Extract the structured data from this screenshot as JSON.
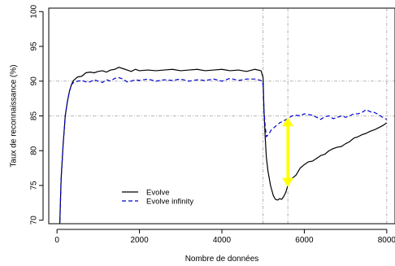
{
  "chart_data": {
    "type": "line",
    "title": "",
    "xlabel": "Nombre de données",
    "ylabel": "Taux de reconnaissance (%)",
    "xlim": [
      -200,
      8200
    ],
    "ylim": [
      69.5,
      100.5
    ],
    "x_ticks": [
      0,
      2000,
      4000,
      6000,
      8000
    ],
    "x_tick_labels": [
      "0",
      "2000",
      "4000",
      "6000",
      "8000"
    ],
    "y_ticks": [
      70,
      75,
      80,
      85,
      90,
      95,
      100
    ],
    "y_tick_labels": [
      "70",
      "75",
      "80",
      "85",
      "90",
      "95",
      "100"
    ],
    "reference_lines": {
      "horizontal": [
        85,
        90
      ],
      "vertical": [
        5000,
        5600,
        8000
      ],
      "color": "#a0a0a0",
      "style": "dot-dash"
    },
    "legend": {
      "position": "bottom-left"
    },
    "series": [
      {
        "name": "Evolve",
        "color": "#000000",
        "style": "solid",
        "points": [
          [
            60,
            68
          ],
          [
            100,
            76
          ],
          [
            150,
            81
          ],
          [
            200,
            85
          ],
          [
            250,
            87
          ],
          [
            300,
            88.5
          ],
          [
            350,
            89.5
          ],
          [
            400,
            90.1
          ],
          [
            500,
            90.6
          ],
          [
            600,
            90.7
          ],
          [
            700,
            91.2
          ],
          [
            800,
            91.3
          ],
          [
            900,
            91.2
          ],
          [
            1000,
            91.4
          ],
          [
            1100,
            91.5
          ],
          [
            1200,
            91.3
          ],
          [
            1300,
            91.6
          ],
          [
            1400,
            91.7
          ],
          [
            1500,
            92.0
          ],
          [
            1600,
            91.8
          ],
          [
            1700,
            91.6
          ],
          [
            1800,
            91.4
          ],
          [
            1900,
            91.7
          ],
          [
            2000,
            91.5
          ],
          [
            2200,
            91.6
          ],
          [
            2400,
            91.5
          ],
          [
            2600,
            91.6
          ],
          [
            2800,
            91.7
          ],
          [
            3000,
            91.5
          ],
          [
            3200,
            91.6
          ],
          [
            3400,
            91.7
          ],
          [
            3600,
            91.5
          ],
          [
            3800,
            91.6
          ],
          [
            4000,
            91.7
          ],
          [
            4200,
            91.5
          ],
          [
            4400,
            91.6
          ],
          [
            4600,
            91.4
          ],
          [
            4800,
            91.7
          ],
          [
            4950,
            91.5
          ],
          [
            5000,
            90.5
          ],
          [
            5020,
            86
          ],
          [
            5050,
            82
          ],
          [
            5080,
            79
          ],
          [
            5120,
            77
          ],
          [
            5180,
            75
          ],
          [
            5250,
            73.5
          ],
          [
            5300,
            73.0
          ],
          [
            5350,
            72.9
          ],
          [
            5400,
            73.1
          ],
          [
            5450,
            73.0
          ],
          [
            5500,
            73.4
          ],
          [
            5550,
            74.0
          ],
          [
            5600,
            75.0
          ],
          [
            5650,
            75.8
          ],
          [
            5700,
            76.0
          ],
          [
            5800,
            76.5
          ],
          [
            5900,
            77.5
          ],
          [
            6000,
            78.0
          ],
          [
            6100,
            78.4
          ],
          [
            6200,
            78.5
          ],
          [
            6300,
            78.9
          ],
          [
            6400,
            79.3
          ],
          [
            6500,
            79.5
          ],
          [
            6600,
            80.0
          ],
          [
            6700,
            80.3
          ],
          [
            6800,
            80.5
          ],
          [
            6900,
            80.6
          ],
          [
            7000,
            81.0
          ],
          [
            7100,
            81.3
          ],
          [
            7200,
            81.8
          ],
          [
            7300,
            82.0
          ],
          [
            7400,
            82.3
          ],
          [
            7500,
            82.5
          ],
          [
            7600,
            82.8
          ],
          [
            7700,
            83.0
          ],
          [
            7800,
            83.3
          ],
          [
            7900,
            83.6
          ],
          [
            8000,
            84.0
          ]
        ]
      },
      {
        "name": "Evolve infinity",
        "color": "#0000cc",
        "style": "dashed",
        "points": [
          [
            60,
            68
          ],
          [
            100,
            76
          ],
          [
            150,
            81
          ],
          [
            200,
            85
          ],
          [
            250,
            87
          ],
          [
            300,
            88.5
          ],
          [
            350,
            89.5
          ],
          [
            400,
            89.8
          ],
          [
            500,
            90.0
          ],
          [
            600,
            90.1
          ],
          [
            700,
            89.9
          ],
          [
            800,
            89.9
          ],
          [
            900,
            90.2
          ],
          [
            1000,
            90.0
          ],
          [
            1100,
            89.8
          ],
          [
            1200,
            90.2
          ],
          [
            1300,
            90.0
          ],
          [
            1400,
            90.4
          ],
          [
            1500,
            90.5
          ],
          [
            1600,
            90.3
          ],
          [
            1700,
            89.9
          ],
          [
            1800,
            90.0
          ],
          [
            1900,
            90.2
          ],
          [
            2000,
            90.1
          ],
          [
            2200,
            90.3
          ],
          [
            2400,
            90.0
          ],
          [
            2600,
            90.2
          ],
          [
            2800,
            90.1
          ],
          [
            3000,
            90.3
          ],
          [
            3200,
            90.0
          ],
          [
            3400,
            90.2
          ],
          [
            3600,
            90.1
          ],
          [
            3800,
            90.3
          ],
          [
            4000,
            90.0
          ],
          [
            4200,
            90.4
          ],
          [
            4400,
            90.1
          ],
          [
            4600,
            90.3
          ],
          [
            4800,
            90.3
          ],
          [
            4950,
            90.1
          ],
          [
            5000,
            89.5
          ],
          [
            5020,
            86
          ],
          [
            5050,
            83.5
          ],
          [
            5080,
            82.0
          ],
          [
            5150,
            82.5
          ],
          [
            5200,
            83.0
          ],
          [
            5300,
            83.5
          ],
          [
            5400,
            84.0
          ],
          [
            5500,
            84.3
          ],
          [
            5600,
            84.6
          ],
          [
            5700,
            85.0
          ],
          [
            5800,
            85.1
          ],
          [
            5900,
            85.0
          ],
          [
            6000,
            85.3
          ],
          [
            6100,
            85.2
          ],
          [
            6200,
            85.1
          ],
          [
            6300,
            84.8
          ],
          [
            6400,
            84.5
          ],
          [
            6500,
            84.9
          ],
          [
            6600,
            85.0
          ],
          [
            6700,
            84.6
          ],
          [
            6800,
            84.8
          ],
          [
            6900,
            85.0
          ],
          [
            7000,
            84.8
          ],
          [
            7100,
            85.0
          ],
          [
            7200,
            85.3
          ],
          [
            7300,
            85.3
          ],
          [
            7400,
            85.5
          ],
          [
            7500,
            85.9
          ],
          [
            7600,
            85.6
          ],
          [
            7700,
            85.5
          ],
          [
            7800,
            85.2
          ],
          [
            7900,
            84.8
          ],
          [
            8000,
            84.5
          ]
        ]
      }
    ],
    "annotations": [
      {
        "type": "double-arrow",
        "color": "#ffff00",
        "x": 5600,
        "y_from": 74.8,
        "y_to": 84.8
      }
    ]
  }
}
